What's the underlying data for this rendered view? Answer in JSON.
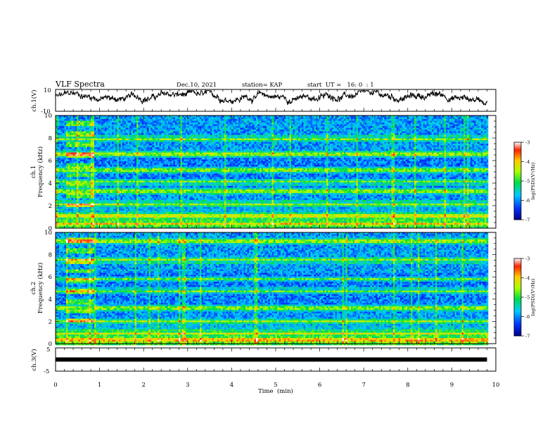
{
  "header": {
    "title": "VLF Spectra",
    "date": "Dec.10, 2021",
    "station": "station= KAP",
    "start_ut": "start  UT =   16: 0  : 1"
  },
  "xaxis": {
    "label": "Time  (min)",
    "ticks": [
      "0",
      "1",
      "2",
      "3",
      "4",
      "5",
      "6",
      "7",
      "8",
      "9",
      "10"
    ]
  },
  "ch1_panel": {
    "ylabel": "ch.1(V)",
    "ticks": [
      "10",
      "-10"
    ]
  },
  "spec1": {
    "ylabel_a": "ch.1",
    "ylabel_b": "Frequency  (kHz)",
    "ticks": [
      "0",
      "2",
      "4",
      "6",
      "8",
      "10"
    ]
  },
  "spec2": {
    "ylabel_a": "ch.2",
    "ylabel_b": "Frequency  (kHz)",
    "ticks": [
      "0",
      "2",
      "4",
      "6",
      "8",
      "10"
    ]
  },
  "colorbar": {
    "label": "log(PSD)(V²/Hz)",
    "ticks": [
      "-3",
      "-4",
      "-5",
      "-6",
      "-7"
    ]
  },
  "ch3_panel": {
    "ylabel": "ch.3(V)",
    "ticks": [
      "5",
      "-5"
    ]
  },
  "chart_data": {
    "type": "heatmap",
    "title": "VLF Spectra",
    "xlabel": "Time  (min)",
    "xlim": [
      0,
      10
    ],
    "data_end_min": 9.8,
    "panels": [
      {
        "name": "ch.1(V)",
        "type": "line",
        "ylim": [
          -10,
          10
        ],
        "approx_level_V": 3,
        "approx_range_V": [
          -5,
          9
        ]
      },
      {
        "name": "ch.1 spectrogram",
        "type": "heatmap",
        "ylabel": "Frequency  (kHz)",
        "ylim": [
          0,
          10
        ],
        "colorscale_label": "log(PSD)(V²/Hz)",
        "crange": [
          -7,
          -3
        ],
        "intense_block_min": [
          0.2,
          0.85
        ],
        "bands_kHz": [
          0.5,
          1.2,
          2.2,
          3.4,
          4.2,
          5.2,
          6.6,
          8.0
        ]
      },
      {
        "name": "ch.2 spectrogram",
        "type": "heatmap",
        "ylabel": "Frequency  (kHz)",
        "ylim": [
          0,
          10
        ],
        "colorscale_label": "log(PSD)(V²/Hz)",
        "crange": [
          -7,
          -3
        ],
        "intense_block_min": [
          0.2,
          0.85
        ],
        "bands_kHz": [
          0.4,
          1.0,
          2.1,
          3.3,
          4.8,
          5.9,
          7.6,
          9.3
        ]
      },
      {
        "name": "ch.3(V)",
        "type": "line",
        "ylim": [
          -5,
          5
        ],
        "approx_level_V": 0
      }
    ]
  }
}
